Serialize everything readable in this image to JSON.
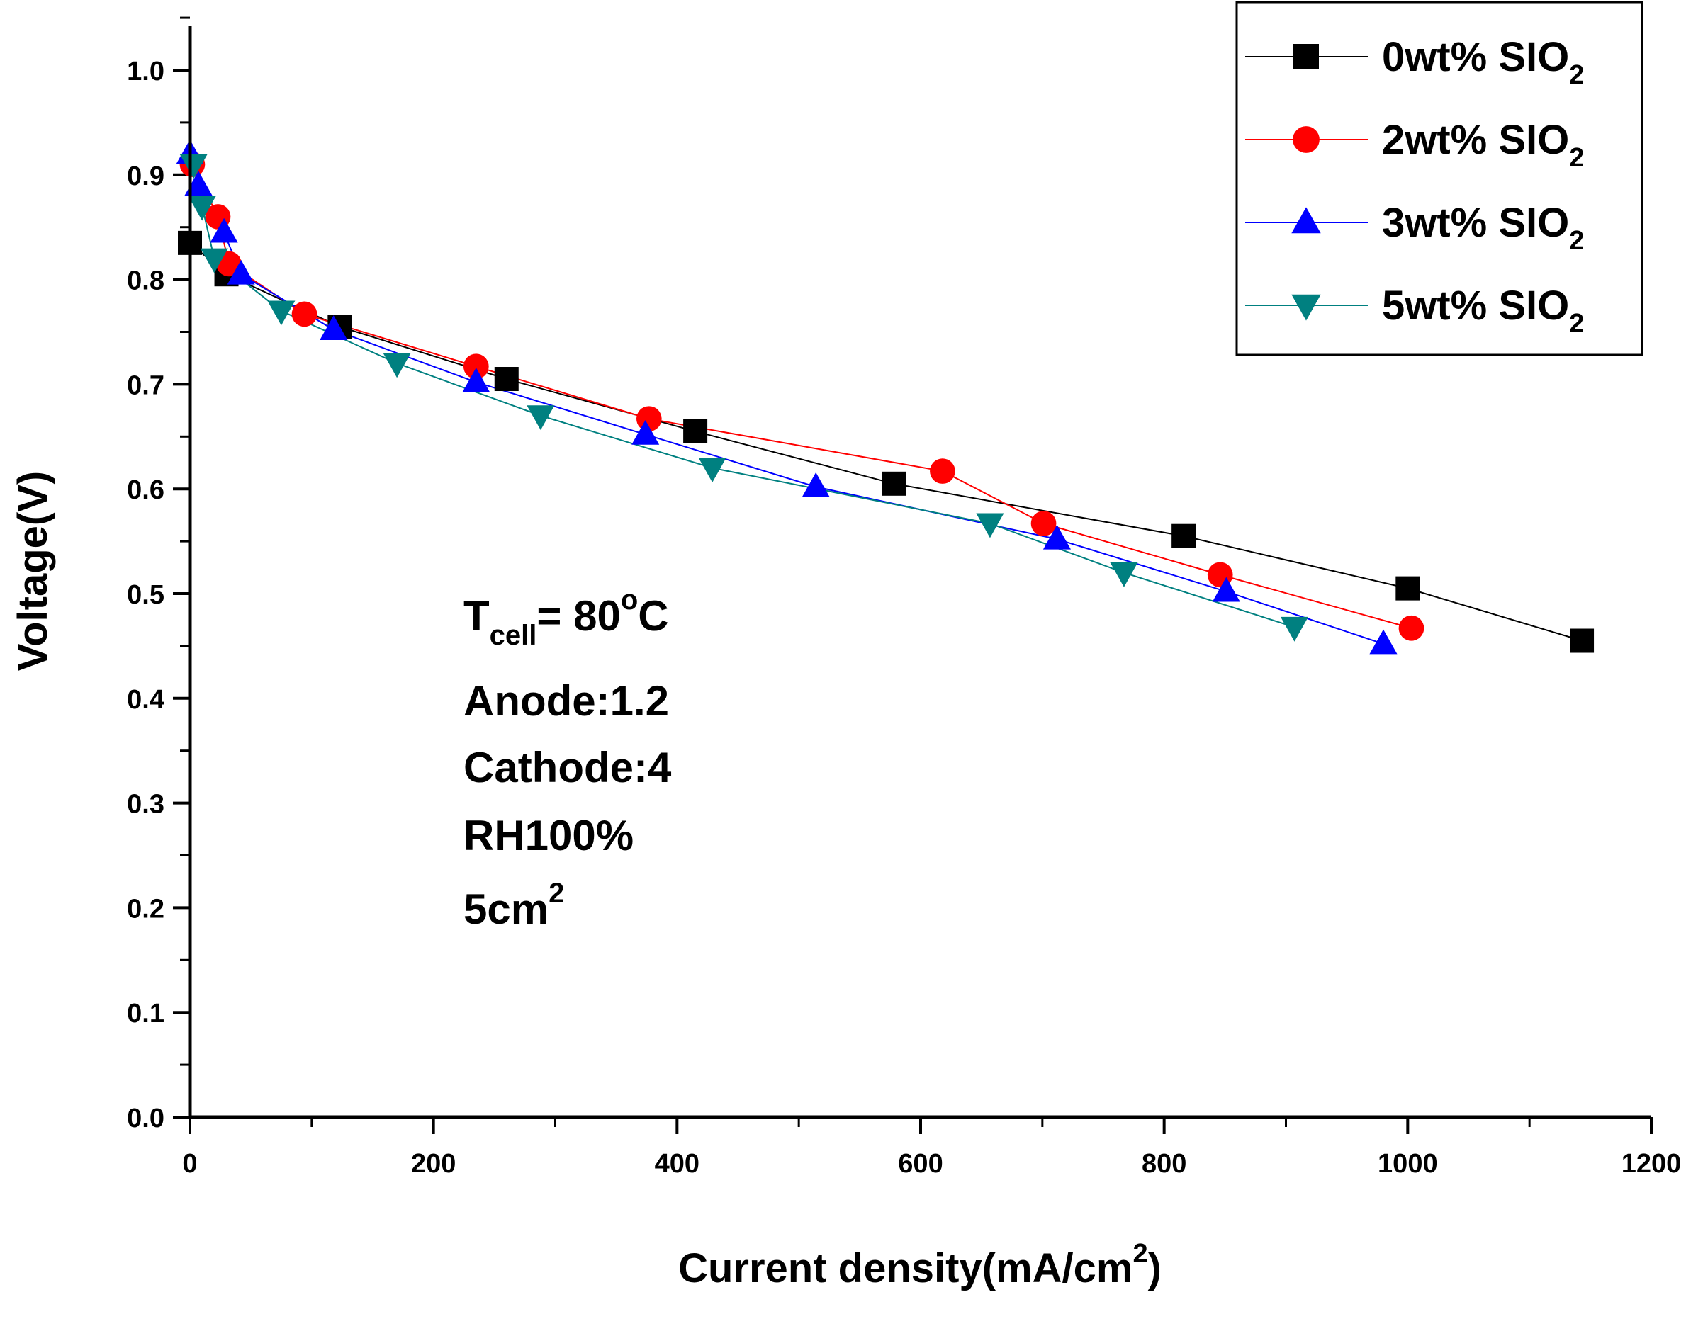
{
  "chart_data": {
    "type": "line",
    "xlabel": "Current density(mA/cm",
    "xlabel_sup": "2",
    "xlabel_end": ")",
    "ylabel": "Voltage(V)",
    "xlim": [
      0,
      1200
    ],
    "ylim": [
      0,
      1.05
    ],
    "x_ticks": [
      0,
      200,
      400,
      600,
      800,
      1000,
      1200
    ],
    "y_ticks": [
      0.0,
      0.1,
      0.2,
      0.3,
      0.4,
      0.5,
      0.6,
      0.7,
      0.8,
      0.9,
      1.0
    ],
    "x_tick_labels": [
      "0",
      "200",
      "400",
      "600",
      "800",
      "1000",
      "1200"
    ],
    "y_tick_labels": [
      "0.0",
      "0.1",
      "0.2",
      "0.3",
      "0.4",
      "0.5",
      "0.6",
      "0.7",
      "0.8",
      "0.9",
      "1.0"
    ],
    "legend_position": "top-right",
    "series": [
      {
        "name": "0wt% SIO",
        "name_sub": "2",
        "color": "#000000",
        "marker": "square",
        "x": [
          0,
          30,
          123,
          260,
          415,
          578,
          816,
          1000,
          1143
        ],
        "y": [
          0.835,
          0.805,
          0.755,
          0.705,
          0.655,
          0.605,
          0.555,
          0.505,
          0.455
        ]
      },
      {
        "name": "2wt% SIO",
        "name_sub": "2",
        "color": "#ff0000",
        "marker": "circle",
        "x": [
          2,
          23,
          32,
          94,
          235,
          377,
          618,
          701,
          846,
          1003
        ],
        "y": [
          0.91,
          0.86,
          0.815,
          0.767,
          0.717,
          0.667,
          0.617,
          0.567,
          0.518,
          0.467
        ]
      },
      {
        "name": "3wt% SIO",
        "name_sub": "2",
        "color": "#0000ff",
        "marker": "triangle-up",
        "x": [
          0,
          7,
          28,
          42,
          118,
          235,
          374,
          514,
          712,
          851,
          980
        ],
        "y": [
          0.92,
          0.89,
          0.845,
          0.805,
          0.752,
          0.702,
          0.652,
          0.602,
          0.552,
          0.502,
          0.452
        ]
      },
      {
        "name": "5wt% SIO",
        "name_sub": "2",
        "color": "#008080",
        "marker": "triangle-down",
        "x": [
          3,
          10,
          20,
          75,
          170,
          288,
          429,
          657,
          767,
          907
        ],
        "y": [
          0.91,
          0.87,
          0.82,
          0.77,
          0.72,
          0.67,
          0.62,
          0.567,
          0.52,
          0.468
        ]
      }
    ],
    "annotations": {
      "t_main": "T",
      "t_sub": "cell",
      "t_rest": "= 80",
      "t_deg": "o",
      "t_unit": "C",
      "anode": "Anode:1.2",
      "cathode": "Cathode:4",
      "rh": "RH100%",
      "area": "5cm",
      "area_sup": "2"
    }
  }
}
